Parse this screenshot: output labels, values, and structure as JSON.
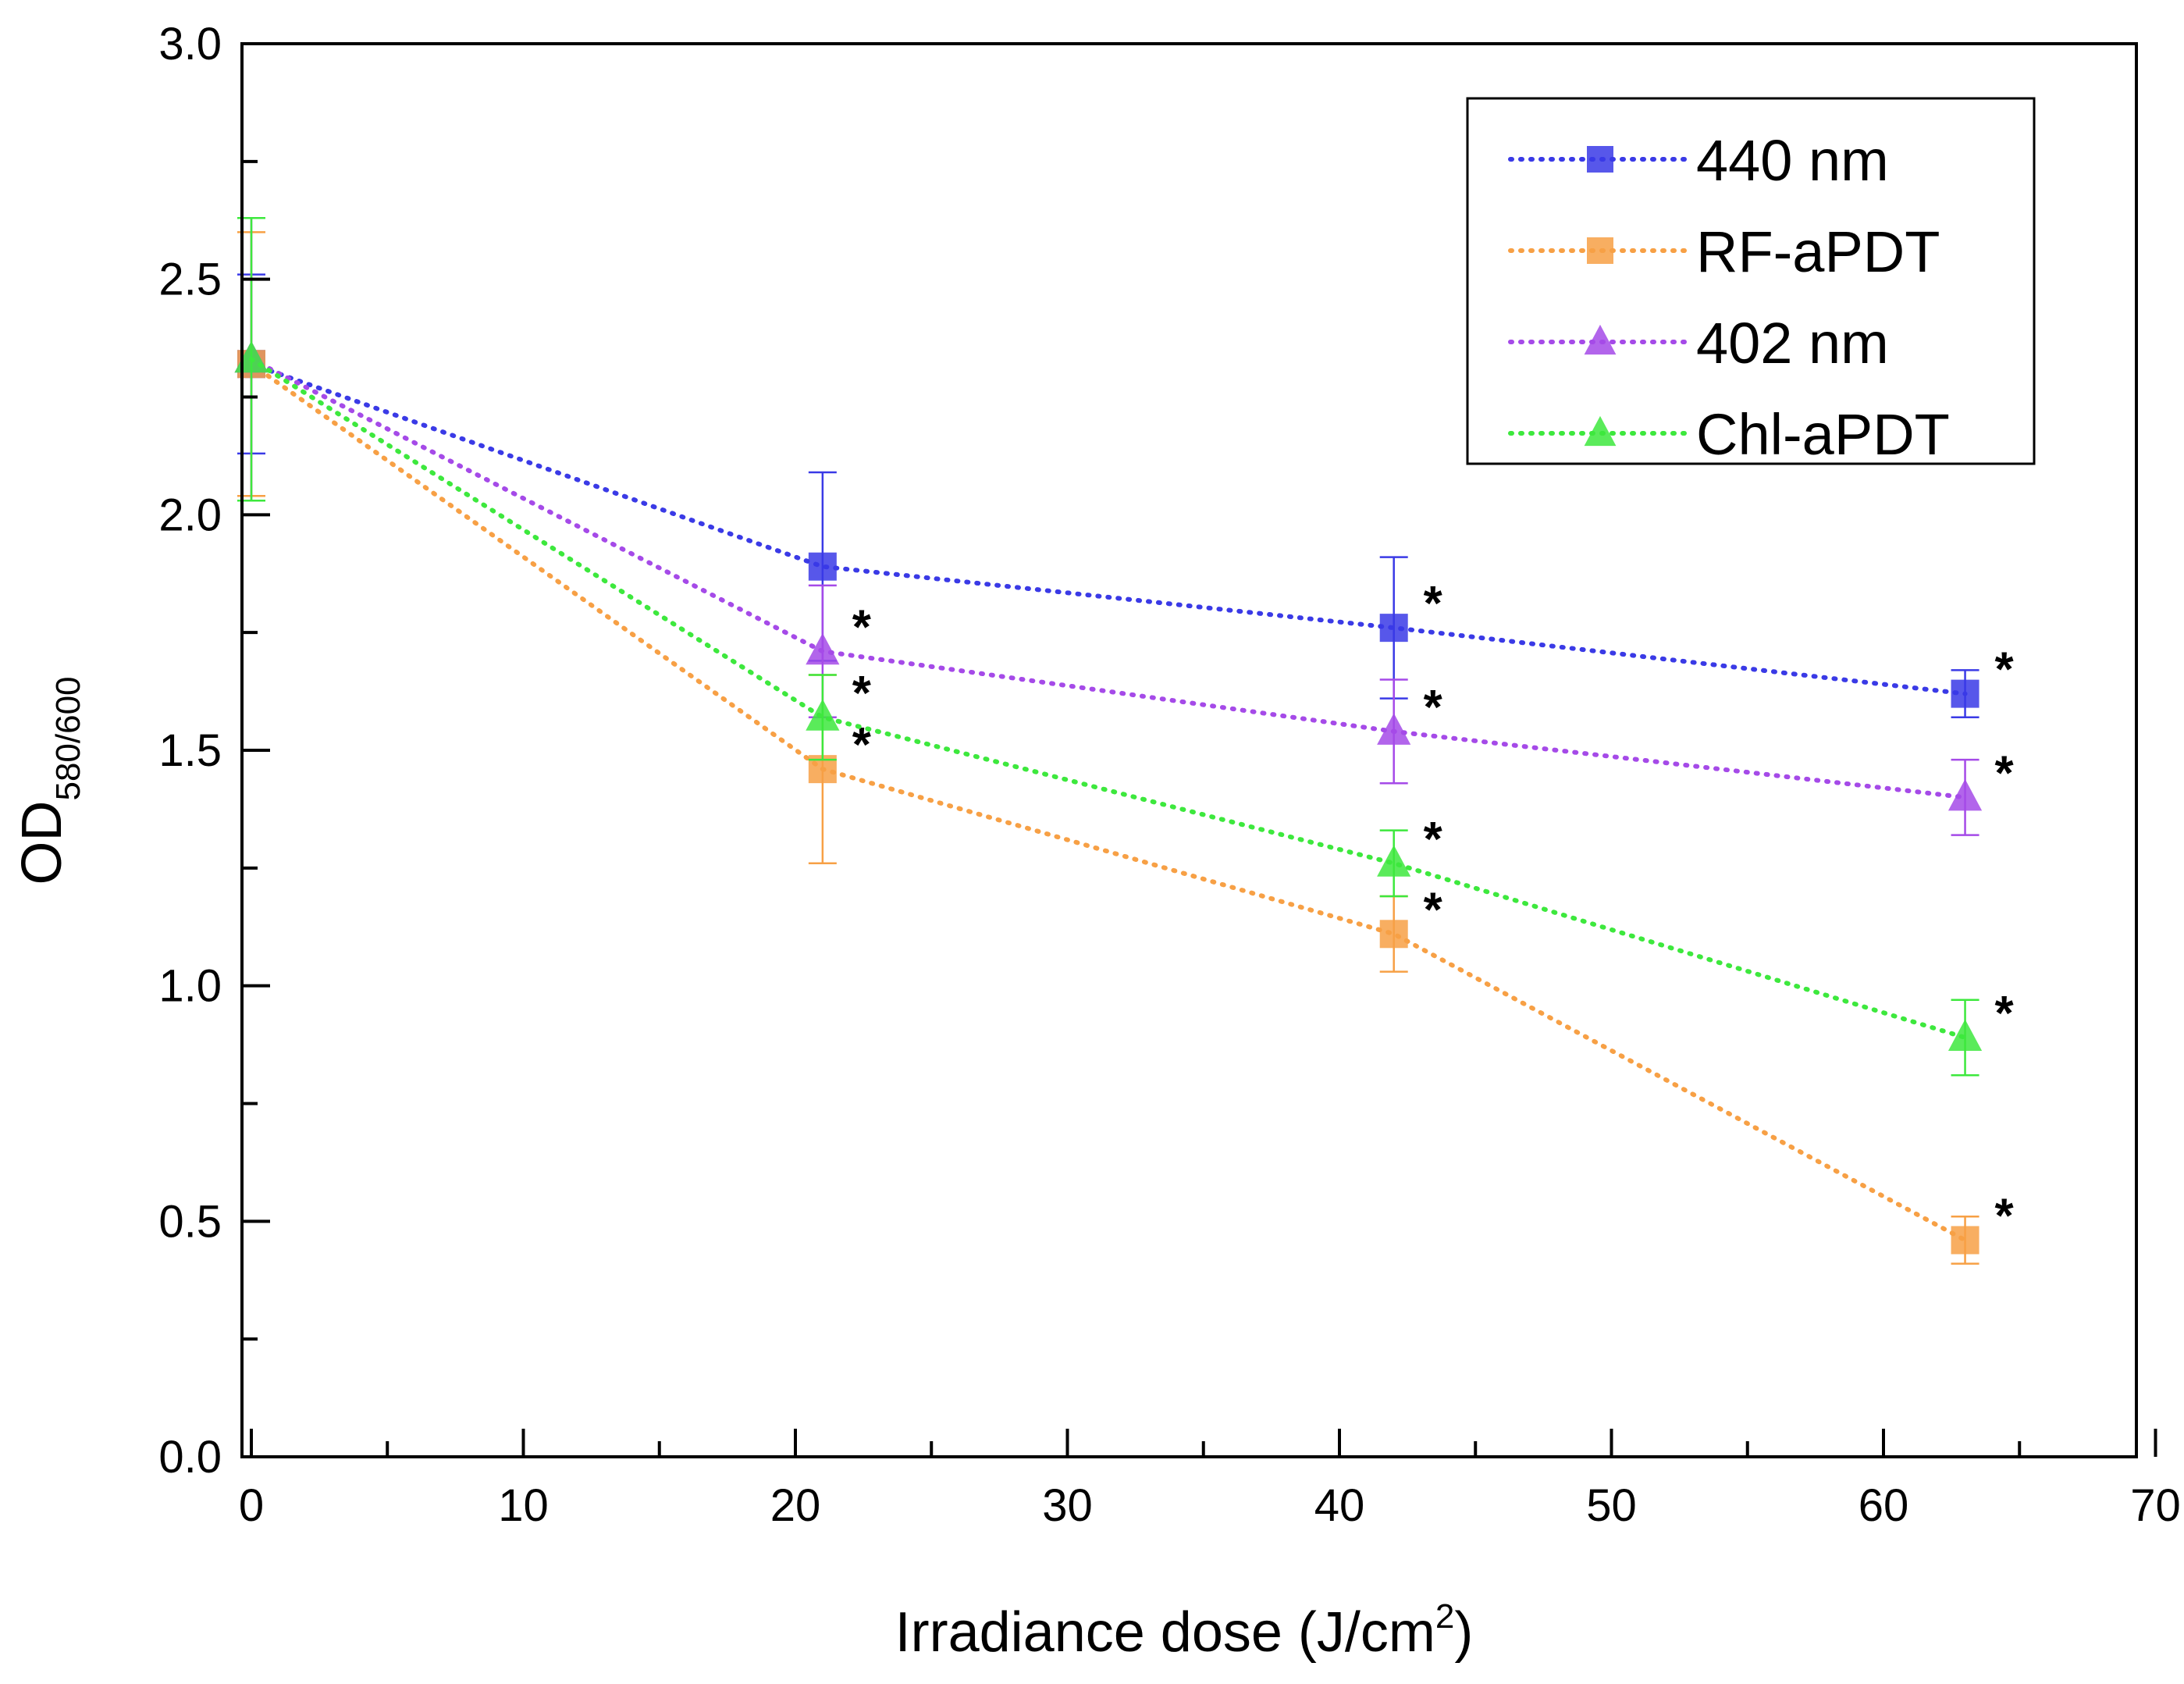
{
  "chart_data": {
    "type": "line",
    "title": "",
    "xlabel": "Irradiance dose (J/cm",
    "xlabel_sup": "2",
    "xlabel_close": ")",
    "ylabel": "OD",
    "ylabel_sub": "580/600",
    "xlim": [
      0,
      70
    ],
    "ylim": [
      0.0,
      3.0
    ],
    "xticks": [
      0,
      10,
      20,
      30,
      40,
      50,
      60,
      70
    ],
    "xtick_labels": [
      "0",
      "10",
      "20",
      "30",
      "40",
      "50",
      "60",
      "70"
    ],
    "yticks": [
      0.0,
      0.5,
      1.0,
      1.5,
      2.0,
      2.5,
      3.0
    ],
    "ytick_labels": [
      "0.0",
      "0.5",
      "1.0",
      "1.5",
      "2.0",
      "2.5",
      "3.0"
    ],
    "legend_position": "top-right",
    "significance_marker": "*",
    "series": [
      {
        "name": "440 nm",
        "color": "#3a3ae6",
        "marker": "square",
        "x": [
          0,
          21,
          42,
          63
        ],
        "y": [
          2.32,
          1.89,
          1.76,
          1.62
        ],
        "err": [
          0.19,
          0.2,
          0.15,
          0.05
        ],
        "significant": [
          false,
          false,
          true,
          true
        ]
      },
      {
        "name": "RF-aPDT",
        "color": "#f7a045",
        "marker": "square",
        "x": [
          0,
          21,
          42,
          63
        ],
        "y": [
          2.32,
          1.46,
          1.11,
          0.46
        ],
        "err": [
          0.28,
          0.2,
          0.08,
          0.05
        ],
        "significant": [
          false,
          true,
          true,
          true
        ]
      },
      {
        "name": "402 nm",
        "color": "#a54ae8",
        "marker": "triangle",
        "x": [
          0,
          21,
          42,
          63
        ],
        "y": [
          2.33,
          1.71,
          1.54,
          1.4
        ],
        "err": [
          0.3,
          0.14,
          0.11,
          0.08
        ],
        "significant": [
          false,
          true,
          true,
          true
        ]
      },
      {
        "name": "Chl-aPDT",
        "color": "#3de83d",
        "marker": "triangle",
        "x": [
          0,
          21,
          42,
          63
        ],
        "y": [
          2.33,
          1.57,
          1.26,
          0.89
        ],
        "err": [
          0.3,
          0.09,
          0.07,
          0.08
        ],
        "significant": [
          false,
          true,
          true,
          true
        ]
      }
    ]
  }
}
